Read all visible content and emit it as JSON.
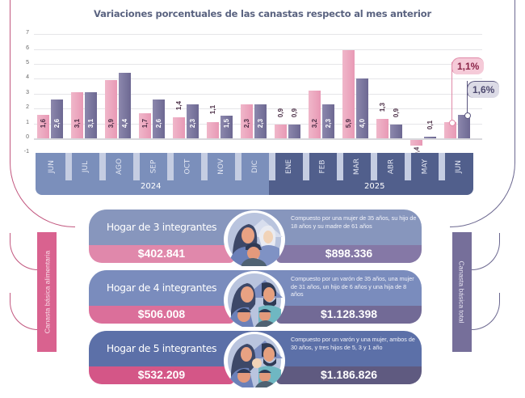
{
  "chart_data": {
    "type": "bar",
    "title": "Variaciones porcentuales de las canastas respecto al mes anterior",
    "xlabel": "",
    "ylabel": "",
    "ylim": [
      -1,
      7
    ],
    "yticks": [
      7,
      6,
      5,
      4,
      3,
      2,
      1,
      0,
      -1
    ],
    "grid": true,
    "categories": [
      "JUN",
      "JUL",
      "AGO",
      "SEP",
      "OCT",
      "NOV",
      "DIC",
      "ENE",
      "FEB",
      "MAR",
      "ABR",
      "MAY",
      "JUN"
    ],
    "years": [
      {
        "label": "2024",
        "months": [
          "JUN",
          "JUL",
          "AGO",
          "SEP",
          "OCT",
          "NOV",
          "DIC"
        ]
      },
      {
        "label": "2025",
        "months": [
          "ENE",
          "FEB",
          "MAR",
          "ABR",
          "MAY",
          "JUN"
        ]
      }
    ],
    "series": [
      {
        "name": "Canasta básica alimentaria",
        "color": "#e899b5",
        "values": [
          1.6,
          3.1,
          3.9,
          1.7,
          1.4,
          1.1,
          2.3,
          0.9,
          3.2,
          5.9,
          1.3,
          -0.4,
          1.1
        ],
        "labels": [
          "1,6",
          "3,1",
          "3,9",
          "1,7",
          "1,4",
          "1,1",
          "2,3",
          "0,9",
          "3,2",
          "5,9",
          "1,3",
          "-0,4",
          ""
        ]
      },
      {
        "name": "Canasta básica total",
        "color": "#6d6892",
        "values": [
          2.6,
          3.1,
          4.4,
          2.6,
          2.3,
          1.5,
          2.3,
          0.9,
          2.3,
          4.0,
          0.9,
          0.1,
          1.6
        ],
        "labels": [
          "2,6",
          "3,1",
          "4,4",
          "2,6",
          "2,3",
          "1,5",
          "2,3",
          "0,9",
          "2,3",
          "4,0",
          "0,9",
          "0,1",
          ""
        ]
      }
    ],
    "annotations": [
      {
        "series": "Canasta básica alimentaria",
        "category": "JUN 2025",
        "text": "1,1%"
      },
      {
        "series": "Canasta básica total",
        "category": "JUN 2025",
        "text": "1,6%"
      }
    ]
  },
  "title": "Variaciones porcentuales de las canastas respecto al mes anterior",
  "callouts": {
    "food": "1,1%",
    "total": "1,6%"
  },
  "axis": {
    "months": [
      "JUN",
      "JUL",
      "AGO",
      "SEP",
      "OCT",
      "NOV",
      "DIC",
      "ENE",
      "FEB",
      "MAR",
      "ABR",
      "MAY",
      "JUN"
    ],
    "year_2024": "2024",
    "year_2025": "2025"
  },
  "side_labels": {
    "left": "Canasta básica alimentaria",
    "right": "Canasta básica total"
  },
  "households": [
    {
      "title": "Hogar de 3 integrantes",
      "description": "Compuesto por una mujer de 35 años, su hijo de 18 años y su madre de 61 años",
      "cba": "$402.841",
      "cbt": "$898.336",
      "icon": "family-3-icon"
    },
    {
      "title": "Hogar de 4 integrantes",
      "description": "Compuesto por un varón de 35 años, una mujer de 31 años, un hijo de 6 años y una hija de 8 años",
      "cba": "$506.008",
      "cbt": "$1.128.398",
      "icon": "family-4-icon"
    },
    {
      "title": "Hogar de 5 integrantes",
      "description": "Compuesto por un varón y una mujer, ambos de 30 años, y tres hijos de 5, 3 y 1 año",
      "cba": "$532.209",
      "cbt": "$1.186.826",
      "icon": "family-5-icon"
    }
  ],
  "colors": {
    "food": "#e899b5",
    "total": "#6d6892",
    "axis_2024": "#7b8fbb",
    "axis_2025": "#515f8c",
    "cba_band": "#d9628f",
    "cbt_band": "#766f9a"
  }
}
